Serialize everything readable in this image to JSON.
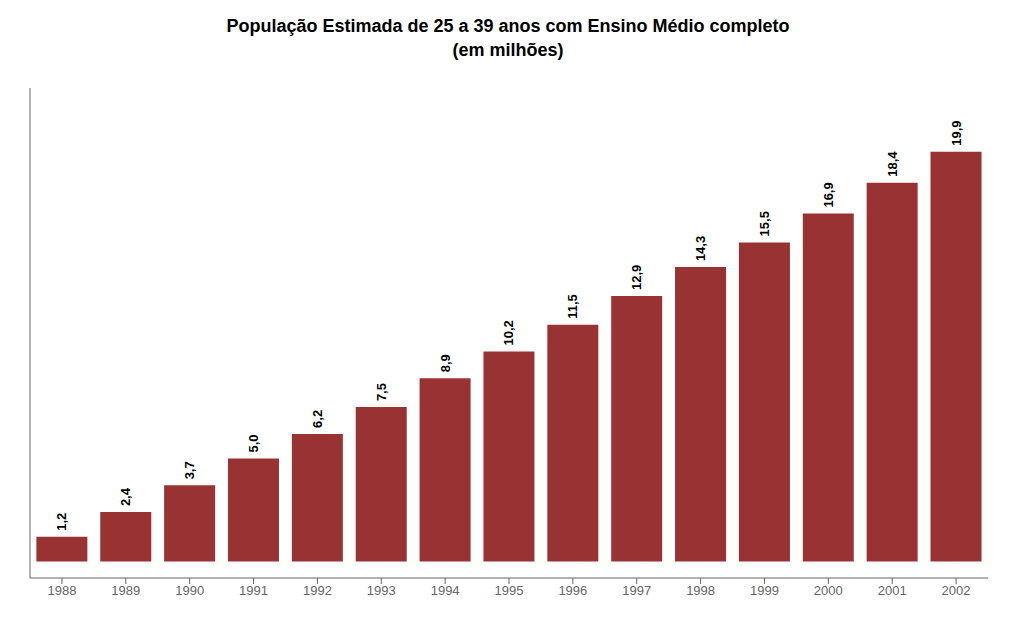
{
  "chart_data": {
    "type": "bar",
    "title": "População Estimada de 25 a 39 anos com Ensino Médio completo\n(em milhões)",
    "categories": [
      "1988",
      "1989",
      "1990",
      "1991",
      "1992",
      "1993",
      "1994",
      "1995",
      "1996",
      "1997",
      "1998",
      "1999",
      "2000",
      "2001",
      "2002"
    ],
    "values": [
      1.2,
      2.4,
      3.7,
      5.0,
      6.2,
      7.5,
      8.9,
      10.2,
      11.5,
      12.9,
      14.3,
      15.5,
      16.9,
      18.4,
      19.9
    ],
    "value_labels": [
      "1,2",
      "2,4",
      "3,7",
      "5,0",
      "6,2",
      "7,5",
      "8,9",
      "10,2",
      "11,5",
      "12,9",
      "14,3",
      "15,5",
      "16,9",
      "18,4",
      "19,9"
    ],
    "data_labels": true,
    "color": "#993333",
    "ylim": [
      -0.8,
      23
    ],
    "tick_labels": "x",
    "grid": false
  }
}
